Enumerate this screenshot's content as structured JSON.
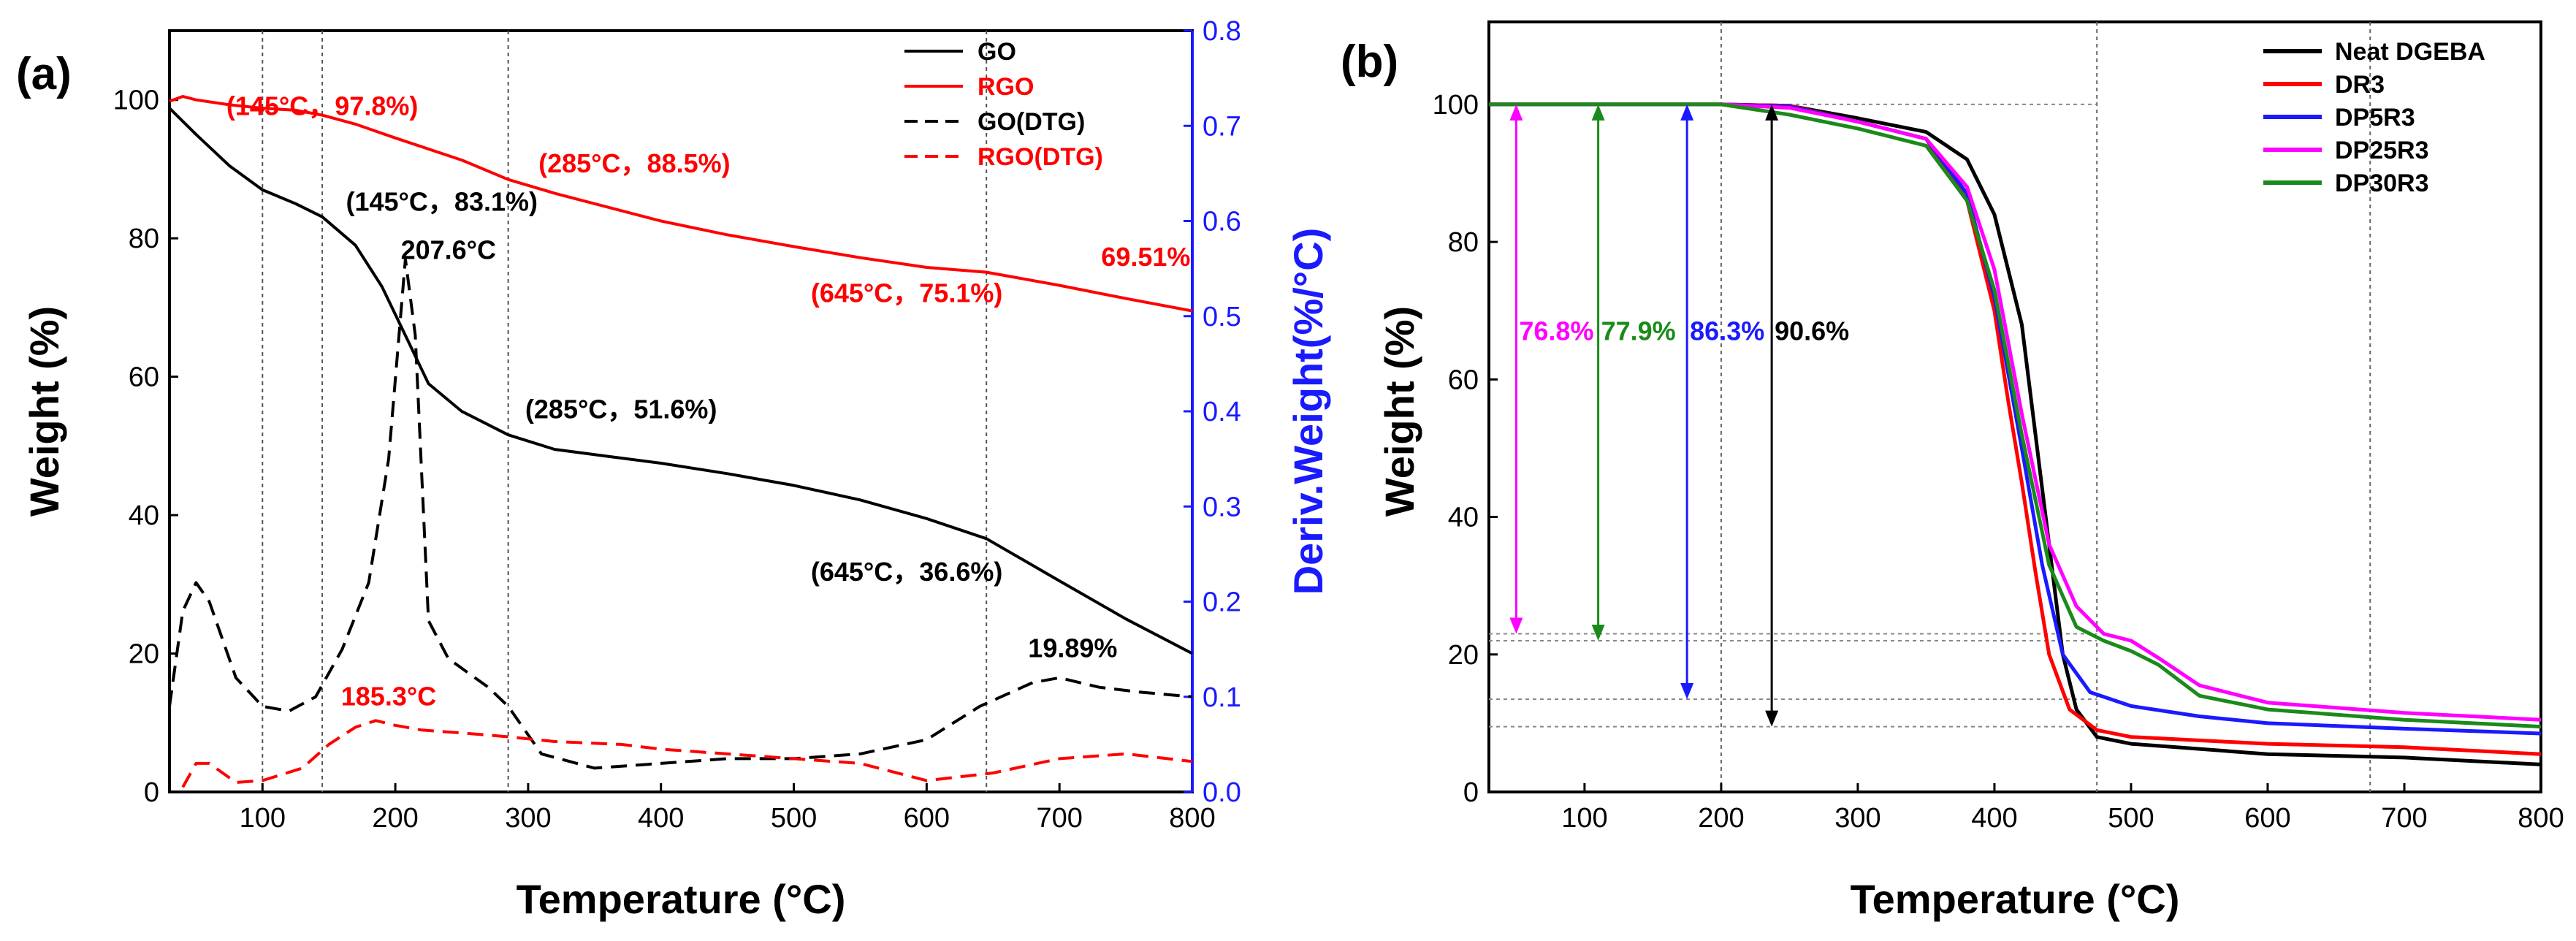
{
  "figure": {
    "panels": [
      "(a)",
      "(b)"
    ]
  },
  "chart_data": [
    {
      "id": "a",
      "type": "line",
      "xlabel": "Temperature (°C)",
      "ylabel": "Weight (%)",
      "y2label": "Deriv.Weight(%/°C)",
      "xlim": [
        30,
        800
      ],
      "ylim": [
        0,
        110
      ],
      "y2lim": [
        0,
        0.8
      ],
      "xticks": [
        100,
        200,
        300,
        400,
        500,
        600,
        700,
        800
      ],
      "yticks": [
        0,
        20,
        40,
        60,
        80,
        100
      ],
      "y2ticks": [
        0.0,
        0.1,
        0.2,
        0.3,
        0.4,
        0.5,
        0.6,
        0.7,
        0.8
      ],
      "y2tick_labels": [
        "0.0",
        "0.1",
        "0.2",
        "0.3",
        "0.4",
        "0.5",
        "0.6",
        "0.7",
        "0.8"
      ],
      "vlines": [
        100,
        145,
        285,
        645
      ],
      "legend": [
        "GO",
        "RGO",
        "GO(DTG)",
        "RGO(DTG)"
      ],
      "colors": {
        "GO": "#000000",
        "RGO": "#ff0000",
        "axis2": "#1a1aff"
      },
      "series": [
        {
          "name": "GO",
          "axis": "left",
          "style": "solid",
          "color": "#000000",
          "x": [
            30,
            50,
            75,
            100,
            125,
            145,
            170,
            190,
            210,
            225,
            250,
            285,
            320,
            360,
            400,
            450,
            500,
            550,
            600,
            645,
            700,
            750,
            800
          ],
          "y": [
            98.8,
            95,
            90.5,
            87,
            85,
            83.1,
            79,
            73,
            65,
            59,
            55,
            51.6,
            49.5,
            48.5,
            47.5,
            46,
            44.3,
            42.2,
            39.5,
            36.6,
            30.5,
            25,
            20
          ]
        },
        {
          "name": "RGO",
          "axis": "left",
          "style": "solid",
          "color": "#ff0000",
          "x": [
            30,
            40,
            50,
            75,
            100,
            125,
            145,
            170,
            200,
            250,
            285,
            320,
            400,
            450,
            500,
            550,
            600,
            645,
            700,
            750,
            800
          ],
          "y": [
            99.8,
            100.5,
            100,
            99.3,
            98.8,
            98.5,
            97.8,
            96.5,
            94.5,
            91.3,
            88.5,
            86.5,
            82.5,
            80.5,
            78.8,
            77.2,
            75.8,
            75.1,
            73.2,
            71.3,
            69.51
          ]
        },
        {
          "name": "GO(DTG)",
          "axis": "right",
          "style": "dashed",
          "color": "#000000",
          "x": [
            30,
            40,
            50,
            60,
            80,
            100,
            120,
            140,
            160,
            180,
            195,
            207.6,
            215,
            225,
            240,
            270,
            285,
            310,
            350,
            400,
            450,
            500,
            550,
            600,
            640,
            680,
            700,
            730,
            760,
            800
          ],
          "y": [
            0.09,
            0.19,
            0.22,
            0.2,
            0.12,
            0.09,
            0.085,
            0.1,
            0.15,
            0.22,
            0.35,
            0.56,
            0.48,
            0.18,
            0.14,
            0.11,
            0.09,
            0.04,
            0.025,
            0.03,
            0.035,
            0.035,
            0.04,
            0.055,
            0.09,
            0.115,
            0.12,
            0.11,
            0.105,
            0.1
          ]
        },
        {
          "name": "RGO(DTG)",
          "axis": "right",
          "style": "dashed",
          "color": "#ff0000",
          "x": [
            40,
            50,
            60,
            80,
            100,
            130,
            150,
            170,
            185.3,
            200,
            220,
            250,
            285,
            320,
            370,
            400,
            450,
            500,
            550,
            600,
            650,
            700,
            750,
            800
          ],
          "y": [
            0.005,
            0.03,
            0.03,
            0.01,
            0.012,
            0.025,
            0.05,
            0.068,
            0.075,
            0.07,
            0.065,
            0.062,
            0.058,
            0.053,
            0.05,
            0.045,
            0.04,
            0.035,
            0.03,
            0.012,
            0.02,
            0.035,
            0.04,
            0.032
          ]
        }
      ],
      "annotations": [
        {
          "text": "(145°C，97.8%)",
          "x": 145,
          "y": 97.8,
          "axis": "left",
          "color": "#ff0000",
          "anchor": "middle"
        },
        {
          "text": "(285°C，88.5%)",
          "x": 380,
          "y": 89.5,
          "axis": "left",
          "color": "#ff0000",
          "anchor": "middle"
        },
        {
          "text": "(145°C，83.1%)",
          "x": 235,
          "y": 84,
          "axis": "left",
          "color": "#000000",
          "anchor": "middle"
        },
        {
          "text": "207.6°C",
          "x": 240,
          "y": 0.56,
          "axis": "right",
          "color": "#000000",
          "anchor": "middle"
        },
        {
          "text": "(285°C，51.6%)",
          "x": 370,
          "y": 54,
          "axis": "left",
          "color": "#000000",
          "anchor": "middle"
        },
        {
          "text": "(645°C，75.1%)",
          "x": 585,
          "y": 70.8,
          "axis": "left",
          "color": "#ff0000",
          "anchor": "middle"
        },
        {
          "text": "69.51%",
          "x": 765,
          "y": 76,
          "axis": "left",
          "color": "#ff0000",
          "anchor": "middle"
        },
        {
          "text": "(645°C，36.6%)",
          "x": 585,
          "y": 30.5,
          "axis": "left",
          "color": "#000000",
          "anchor": "middle"
        },
        {
          "text": "19.89%",
          "x": 710,
          "y": 19.5,
          "axis": "left",
          "color": "#000000",
          "anchor": "middle"
        },
        {
          "text": "185.3°C",
          "x": 195,
          "y": 12.5,
          "axis": "left",
          "color": "#ff0000",
          "anchor": "middle"
        }
      ]
    },
    {
      "id": "b",
      "type": "line",
      "xlabel": "Temperature (°C)",
      "ylabel": "Weight (%)",
      "xlim": [
        30,
        800
      ],
      "ylim": [
        0,
        112
      ],
      "xticks": [
        100,
        200,
        300,
        400,
        500,
        600,
        700,
        800
      ],
      "yticks": [
        0,
        20,
        40,
        60,
        80,
        100
      ],
      "vlines": [
        200,
        475,
        675
      ],
      "hlines": [
        100,
        23,
        22,
        13.5,
        9.5
      ],
      "legend": [
        "Neat DGEBA",
        "DR3",
        "DP5R3",
        "DP25R3",
        "DP30R3"
      ],
      "series": [
        {
          "name": "Neat DGEBA",
          "color": "#000000",
          "x": [
            30,
            200,
            250,
            300,
            350,
            380,
            400,
            420,
            430,
            440,
            450,
            460,
            475,
            500,
            600,
            700,
            800
          ],
          "y": [
            100,
            100,
            99.8,
            98,
            96,
            92,
            84,
            68,
            52,
            36,
            20,
            12,
            8,
            7,
            5.5,
            5,
            4
          ]
        },
        {
          "name": "DR3",
          "color": "#ff0000",
          "x": [
            30,
            200,
            250,
            300,
            350,
            380,
            400,
            410,
            420,
            430,
            440,
            455,
            475,
            500,
            600,
            700,
            800
          ],
          "y": [
            100,
            100,
            99.8,
            97.5,
            95,
            86,
            70,
            57,
            45,
            32,
            20,
            12,
            9,
            8,
            7,
            6.5,
            5.5
          ]
        },
        {
          "name": "DP5R3",
          "color": "#1a1aff",
          "x": [
            30,
            200,
            250,
            300,
            350,
            380,
            400,
            420,
            435,
            450,
            470,
            500,
            550,
            600,
            700,
            800
          ],
          "y": [
            100,
            100,
            99.7,
            97.5,
            95,
            87,
            72,
            50,
            33,
            20,
            14.5,
            12.5,
            11,
            10,
            9.2,
            8.5
          ]
        },
        {
          "name": "DP25R3",
          "color": "#ff00ff",
          "x": [
            30,
            200,
            250,
            300,
            350,
            380,
            400,
            420,
            440,
            460,
            480,
            500,
            520,
            550,
            600,
            700,
            800
          ],
          "y": [
            100,
            100,
            99.5,
            97.5,
            95,
            88,
            76,
            55,
            36,
            27,
            23,
            22,
            19.5,
            15.5,
            13,
            11.5,
            10.5
          ]
        },
        {
          "name": "DP30R3",
          "color": "#1a8a1a",
          "x": [
            30,
            200,
            250,
            300,
            350,
            380,
            400,
            420,
            440,
            460,
            480,
            500,
            520,
            550,
            600,
            700,
            800
          ],
          "y": [
            100,
            100,
            98.5,
            96.5,
            94,
            86,
            73,
            52,
            33,
            24,
            22,
            20.5,
            18.5,
            14,
            12,
            10.5,
            9.5
          ]
        }
      ],
      "arrows": [
        {
          "label": "76.8%",
          "x": 50,
          "y_top": 100,
          "y_bottom": 23,
          "color": "#ff00ff"
        },
        {
          "label": "77.9%",
          "x": 110,
          "y_top": 100,
          "y_bottom": 22,
          "color": "#1a8a1a"
        },
        {
          "label": "86.3%",
          "x": 175,
          "y_top": 100,
          "y_bottom": 13.5,
          "color": "#1a1aff"
        },
        {
          "label": "90.6%",
          "x": 237,
          "y_top": 100,
          "y_bottom": 9.5,
          "color": "#000000"
        }
      ]
    }
  ]
}
